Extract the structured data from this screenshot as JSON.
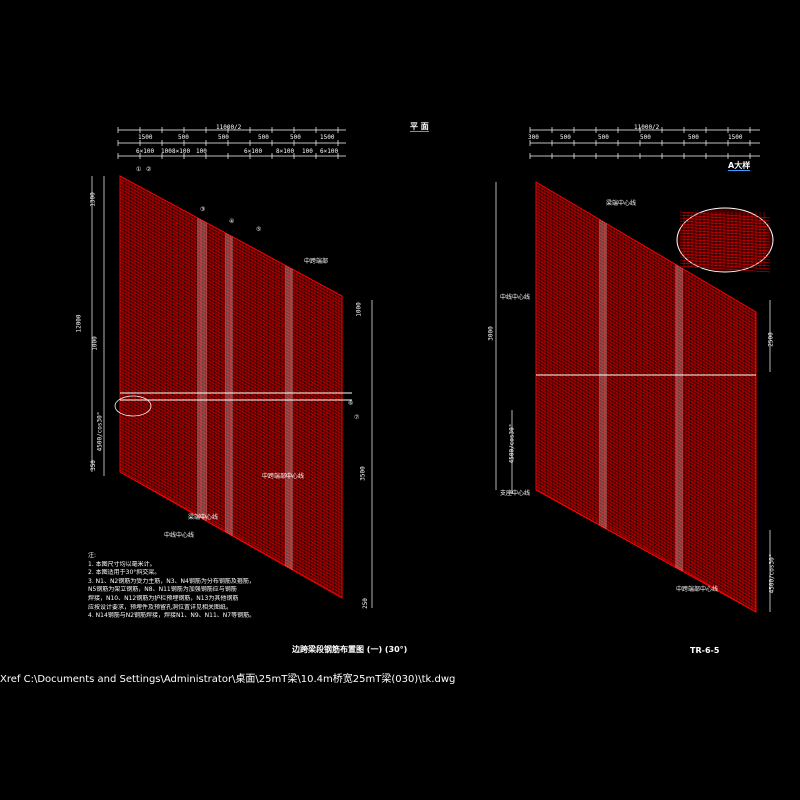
{
  "drawing": {
    "left_view": {
      "top_title": "平 面",
      "top_dimension": "11000/2",
      "dim_row1": [
        "1500",
        "500",
        "500",
        "500",
        "500",
        "1500"
      ],
      "dim_row2": [
        "6×100",
        "100",
        "8×100",
        "100",
        "6×100",
        "8×100",
        "100",
        "6×100"
      ],
      "left_dims": [
        "1300",
        "12000",
        "1000",
        "4500/cos30°",
        "350"
      ],
      "right_dims": [
        "1000",
        "3500",
        "250"
      ],
      "callouts": [
        "①",
        "②",
        "③",
        "④",
        "⑤",
        "⑥",
        "⑦"
      ],
      "labels": [
        "中跨端部",
        "中跨端部中心线",
        "梁端中心线",
        "中线中心线"
      ],
      "caption": "边跨梁段钢筋布置图 (一) (30°)"
    },
    "right_view": {
      "top_dimension": "11000/2",
      "dim_row1": [
        "300",
        "500",
        "500",
        "500",
        "500",
        "1500"
      ],
      "detail_title": "A大样",
      "left_dims": [
        "3000",
        "4500/cos30°"
      ],
      "right_dims": [
        "2500",
        "4500/cos30°"
      ],
      "labels": [
        "梁端中心线",
        "中线中心线",
        "支座中心线",
        "中跨端部中心线"
      ],
      "caption": "TR-6-5"
    },
    "notes": {
      "header": "注:",
      "lines": [
        "1. 本图尺寸均以毫米计。",
        "2. 本图适用于30°斜交梁。",
        "3. N1、N2钢筋为受力主筋，N3、N4钢筋为分布钢筋及箍筋，",
        "   N5钢筋为架立钢筋，N8、N11钢筋为加强钢筋应与钢筋",
        "   焊接，N10、N12钢筋为护栏预埋钢筋，N13为其他钢筋",
        "   应按设计要求，预埋件及预留孔洞位置详见相关图纸。",
        "4. N14钢筋与N2钢筋焊接，焊接N1、N9、N11、N7等钢筋。"
      ]
    },
    "xref": "Xref C:\\Documents and Settings\\Administrator\\桌面\\25mT梁\\10.4m桥宽25mT梁(030)\\tk.dwg",
    "colors": {
      "background": "#000000",
      "rebar": "#ff0000",
      "dimension": "#ffffff",
      "highlight": "#3aa0ff"
    }
  }
}
